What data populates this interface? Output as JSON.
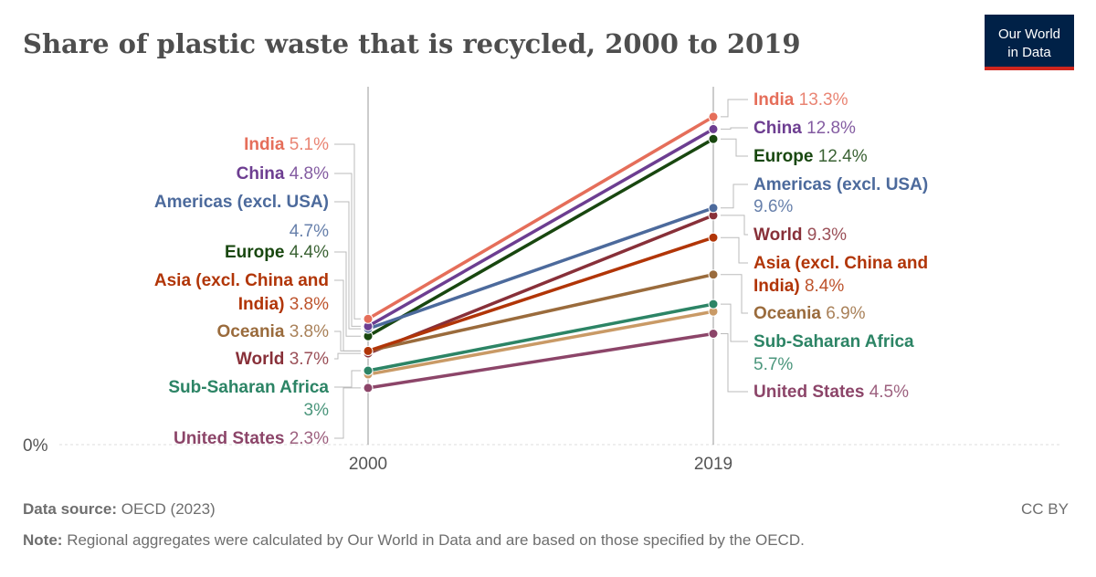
{
  "title": "Share of plastic waste that is recycled, 2000 to 2019",
  "logo": {
    "line1": "Our World",
    "line2": "in Data",
    "bg": "#002147",
    "accent": "#ce261e"
  },
  "footer": {
    "source_label": "Data source:",
    "source_value": "OECD (2023)",
    "license": "CC BY",
    "note_label": "Note:",
    "note_value": "Regional aggregates were calculated by Our World in Data and are based on those specified by the OECD."
  },
  "chart_data": {
    "type": "line",
    "subtype": "slope",
    "title": "Share of plastic waste that is recycled, 2000 to 2019",
    "x": [
      "2000",
      "2019"
    ],
    "y_unit": "%",
    "ylim": [
      0,
      13.3
    ],
    "y_ticks": [
      {
        "value": 0,
        "label": "0%"
      }
    ],
    "series": [
      {
        "name": "India",
        "color": "#e56e5a",
        "values": [
          5.1,
          13.3
        ],
        "labels": [
          "5.1%",
          "13.3%"
        ]
      },
      {
        "name": "China",
        "color": "#6d3e91",
        "values": [
          4.8,
          12.8
        ],
        "labels": [
          "4.8%",
          "12.8%"
        ]
      },
      {
        "name": "Americas (excl. USA)",
        "color": "#4c6a9c",
        "values": [
          4.7,
          9.6
        ],
        "labels": [
          "4.7%",
          "9.6%"
        ]
      },
      {
        "name": "Europe",
        "color": "#18470f",
        "values": [
          4.4,
          12.4
        ],
        "labels": [
          "4.4%",
          "12.4%"
        ]
      },
      {
        "name": "Asia (excl. China and India)",
        "color": "#b13507",
        "values": [
          3.8,
          8.4
        ],
        "labels": [
          "3.8%",
          "8.4%"
        ]
      },
      {
        "name": "Oceania",
        "color": "#9a6b3c",
        "values": [
          3.8,
          6.9
        ],
        "labels": [
          "3.8%",
          "6.9%"
        ]
      },
      {
        "name": "World",
        "color": "#883039",
        "values": [
          3.7,
          9.3
        ],
        "labels": [
          "3.7%",
          "9.3%"
        ]
      },
      {
        "name": "Sub-Saharan Africa",
        "color": "#2c8465",
        "values": [
          3.0,
          5.7
        ],
        "labels": [
          "3%",
          "5.7%"
        ]
      },
      {
        "name": "United States",
        "color": "#8c4569",
        "values": [
          2.3,
          4.5
        ],
        "labels": [
          "2.3%",
          "4.5%"
        ]
      },
      {
        "name": "",
        "color": "#c99a66",
        "values": [
          2.85,
          5.4
        ],
        "labels": [
          "",
          ""
        ]
      }
    ]
  }
}
